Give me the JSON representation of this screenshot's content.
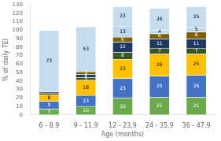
{
  "chart_data": {
    "type": "bar",
    "stacked": true,
    "grid": false,
    "data_labels": true,
    "xlabel": "Age (months)",
    "ylabel": "% of daily TEI",
    "categories": [
      "6 - 8.9",
      "9 - 11.9",
      "12 - 23.9",
      "24 - 35.9",
      "36 - 47.9"
    ],
    "series": [
      {
        "color": "#6aaa4a",
        "values": [
          7,
          10,
          20,
          21,
          21
        ],
        "value_labels": [
          "7",
          "10",
          "20",
          "21",
          "21"
        ]
      },
      {
        "color": "#4472c4",
        "values": [
          9,
          13,
          23,
          25,
          26
        ],
        "value_labels": [
          "9",
          "13",
          "23",
          "25",
          "26"
        ]
      },
      {
        "color": "#ffc000",
        "values": [
          8,
          18,
          23,
          26,
          25
        ],
        "value_labels": [
          "8",
          "18",
          "23",
          "26",
          "25"
        ]
      },
      {
        "color": "#375623",
        "values": [
          2,
          3,
          8,
          7,
          7
        ],
        "value_labels": [
          null,
          "3",
          "8",
          "7",
          "7"
        ]
      },
      {
        "color": "#1f3864",
        "values": [
          1,
          4,
          12,
          11,
          11
        ],
        "value_labels": [
          null,
          "4",
          "12",
          "11",
          "11"
        ]
      },
      {
        "color": "#7f6000",
        "values": [
          0,
          3,
          6,
          6,
          8
        ],
        "value_labels": [
          null,
          "3",
          "6",
          "6",
          "8"
        ]
      },
      {
        "color": "#bdd7ee",
        "values": [
          0,
          0,
          13,
          4,
          5
        ],
        "value_labels": [
          null,
          null,
          "13",
          "4",
          "5"
        ]
      },
      {
        "color": "#c6dcef",
        "values": [
          73,
          53,
          23,
          26,
          25
        ],
        "value_labels": [
          "73",
          "53",
          "23",
          "26",
          "25"
        ]
      }
    ],
    "ylim": [
      0,
      130
    ],
    "yticks": [
      0,
      10,
      20,
      30,
      40,
      50,
      60,
      70,
      80,
      90,
      100,
      110,
      120,
      130
    ]
  }
}
